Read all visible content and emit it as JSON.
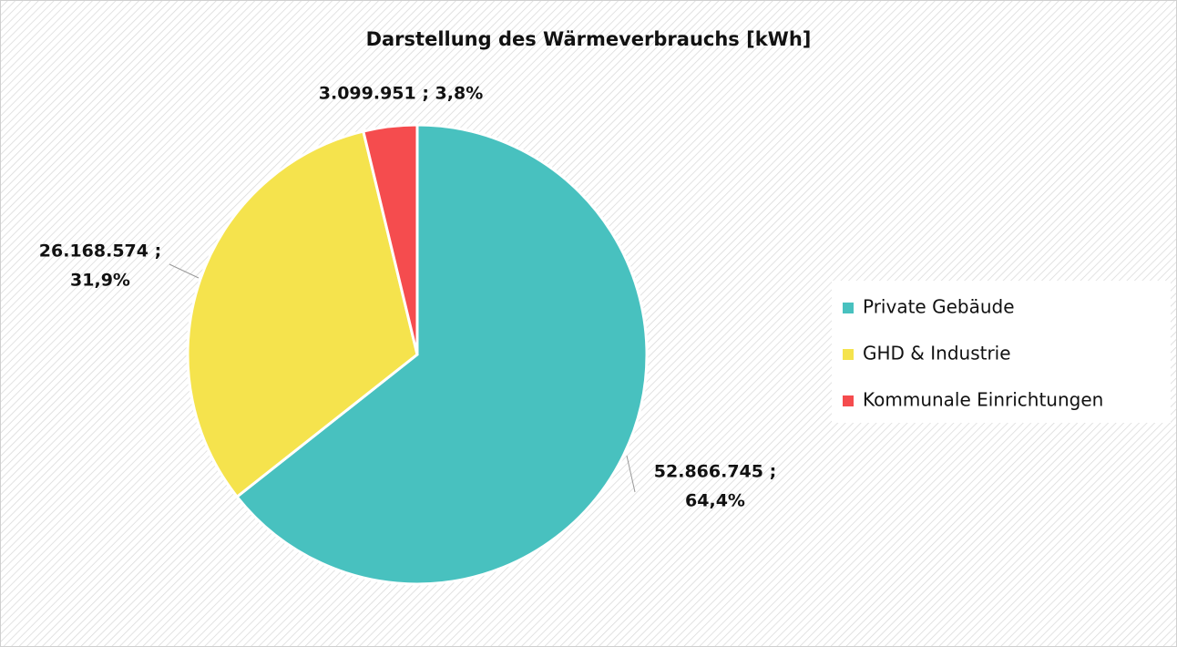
{
  "chart_data": {
    "type": "pie",
    "title": "Darstellung des Wärmeverbrauchs [kWh]",
    "categories": [
      "Private Gebäude",
      "GHD & Industrie",
      "Kommunale Einrichtungen"
    ],
    "values": [
      52866745,
      26168574,
      3099951
    ],
    "value_labels": [
      [
        "52.866.745 ;",
        "64,4%"
      ],
      [
        "26.168.574 ;",
        "31,9%"
      ],
      [
        "3.099.951 ; 3,8%"
      ]
    ],
    "colors": [
      "#48c1bf",
      "#f5e34d",
      "#f54c4e"
    ],
    "legend": "right"
  }
}
